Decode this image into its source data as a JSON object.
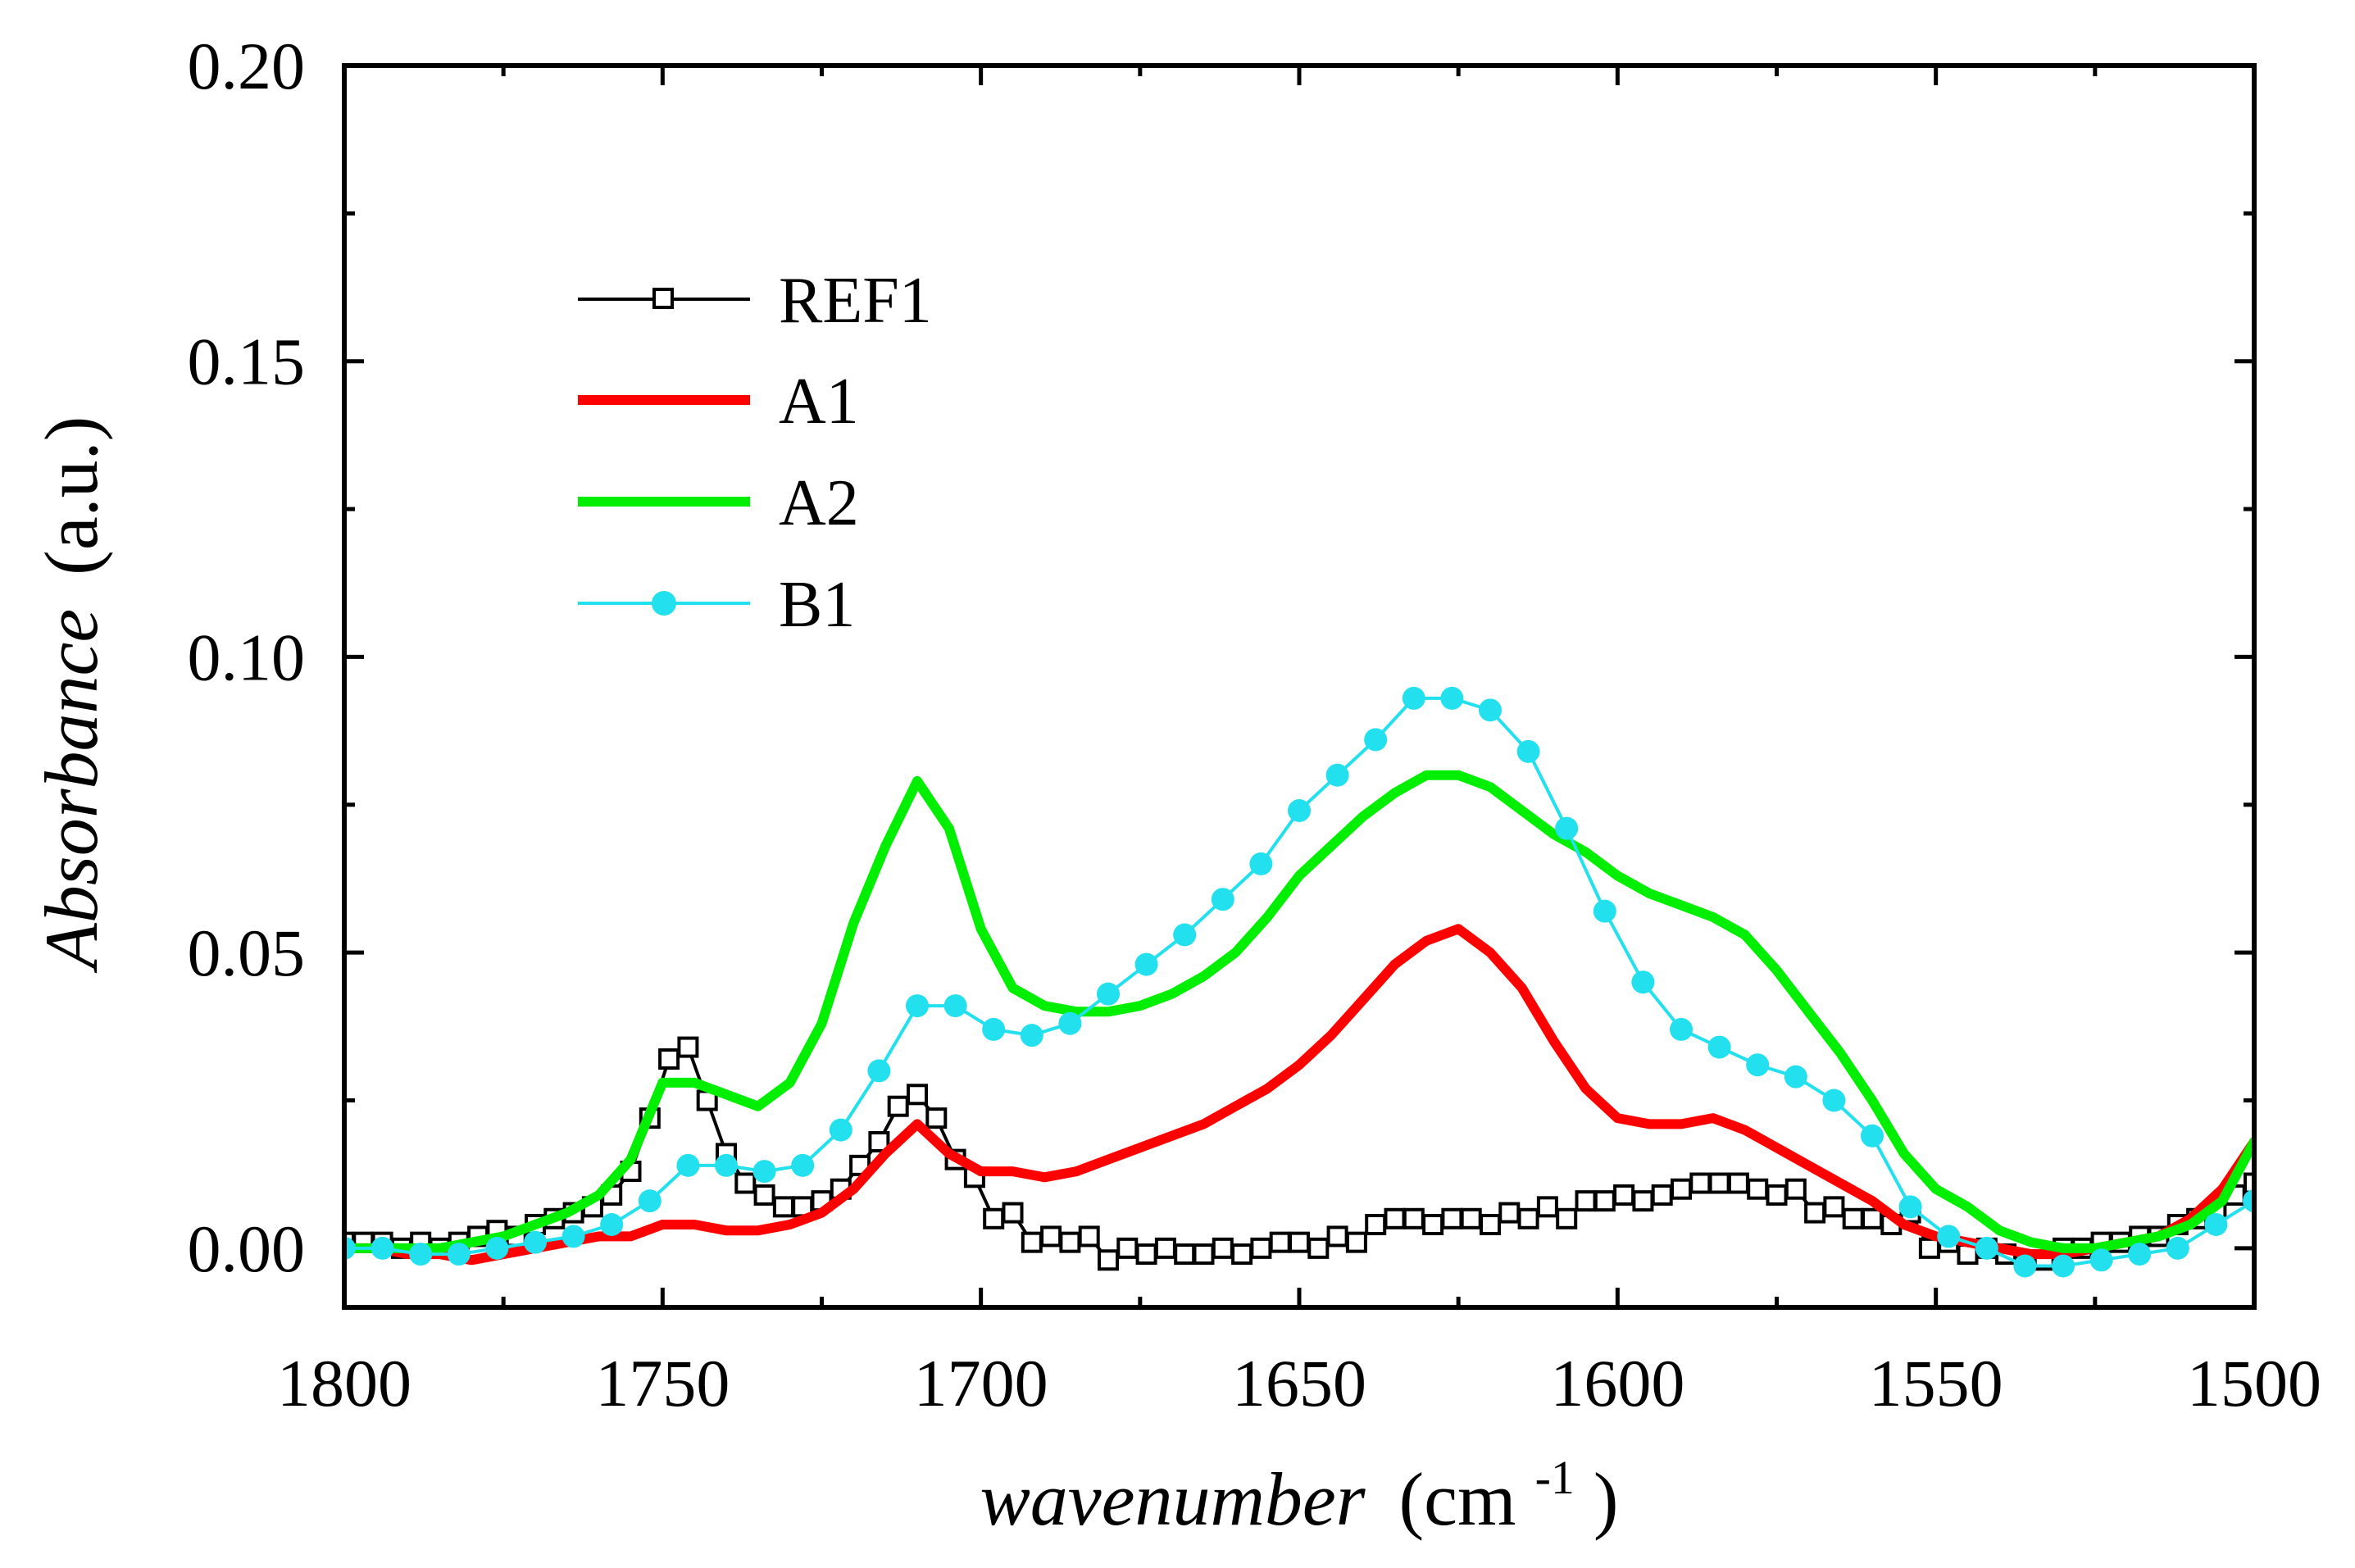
{
  "chart_data": {
    "type": "line",
    "title": "",
    "xlabel_italic": "wavenumber",
    "xlabel_unit_open": "(cm",
    "xlabel_unit_exp": "-1",
    "xlabel_unit_close": ")",
    "ylabel_italic": "Absorbance",
    "ylabel_unit": "(a.u.)",
    "xlim": [
      1800,
      1500
    ],
    "ylim": [
      -0.01,
      0.2
    ],
    "x_reversed": true,
    "xticks": [
      1800,
      1750,
      1700,
      1650,
      1600,
      1550,
      1500
    ],
    "xtick_labels": [
      "1800",
      "1750",
      "1700",
      "1650",
      "1600",
      "1550",
      "1500"
    ],
    "yticks": [
      0.0,
      0.05,
      0.1,
      0.15,
      0.2
    ],
    "ytick_labels": [
      "0.00",
      "0.05",
      "0.10",
      "0.15",
      "0.20"
    ],
    "legend_position": "upper-left",
    "series": [
      {
        "name": "REF1",
        "color": "#000000",
        "style": "line-open-square",
        "x": [
          1800,
          1797,
          1794,
          1791,
          1788,
          1785,
          1782,
          1779,
          1776,
          1773,
          1770,
          1767,
          1764,
          1761,
          1758,
          1755,
          1752,
          1749,
          1746,
          1743,
          1740,
          1737,
          1734,
          1731,
          1728,
          1725,
          1722,
          1719,
          1716,
          1713,
          1710,
          1707,
          1704,
          1701,
          1698,
          1695,
          1692,
          1689,
          1686,
          1683,
          1680,
          1677,
          1674,
          1671,
          1668,
          1665,
          1662,
          1659,
          1656,
          1653,
          1650,
          1647,
          1644,
          1641,
          1638,
          1635,
          1632,
          1629,
          1626,
          1623,
          1620,
          1617,
          1614,
          1611,
          1608,
          1605,
          1602,
          1599,
          1596,
          1593,
          1590,
          1587,
          1584,
          1581,
          1578,
          1575,
          1572,
          1569,
          1566,
          1563,
          1560,
          1557,
          1554,
          1551,
          1548,
          1545,
          1542,
          1539,
          1536,
          1533,
          1530,
          1527,
          1524,
          1521,
          1518,
          1515,
          1512,
          1509,
          1506,
          1503,
          1500
        ],
        "y": [
          0.001,
          0.001,
          0.001,
          0.0,
          0.001,
          0.0,
          0.001,
          0.002,
          0.003,
          0.002,
          0.004,
          0.005,
          0.006,
          0.007,
          0.009,
          0.013,
          0.022,
          0.032,
          0.034,
          0.025,
          0.016,
          0.011,
          0.009,
          0.007,
          0.007,
          0.008,
          0.01,
          0.014,
          0.018,
          0.024,
          0.026,
          0.022,
          0.015,
          0.012,
          0.005,
          0.006,
          0.001,
          0.002,
          0.001,
          0.002,
          -0.002,
          0.0,
          -0.001,
          0.0,
          -0.001,
          -0.001,
          0.0,
          -0.001,
          0.0,
          0.001,
          0.001,
          0.0,
          0.002,
          0.001,
          0.004,
          0.005,
          0.005,
          0.004,
          0.005,
          0.005,
          0.004,
          0.006,
          0.005,
          0.007,
          0.005,
          0.008,
          0.008,
          0.009,
          0.008,
          0.009,
          0.01,
          0.011,
          0.011,
          0.011,
          0.01,
          0.009,
          0.01,
          0.006,
          0.007,
          0.005,
          0.005,
          0.004,
          0.006,
          0.0,
          0.001,
          -0.001,
          0.0,
          -0.001,
          -0.002,
          -0.002,
          0.0,
          0.0,
          0.001,
          0.001,
          0.002,
          0.002,
          0.004,
          0.005,
          0.006,
          0.009,
          0.011
        ]
      },
      {
        "name": "A1",
        "color": "#ff0000",
        "style": "thick-line",
        "x": [
          1800,
          1795,
          1790,
          1785,
          1780,
          1775,
          1770,
          1765,
          1760,
          1755,
          1750,
          1745,
          1740,
          1735,
          1730,
          1725,
          1720,
          1715,
          1710,
          1705,
          1700,
          1695,
          1690,
          1685,
          1680,
          1675,
          1670,
          1665,
          1660,
          1655,
          1650,
          1645,
          1640,
          1635,
          1630,
          1625,
          1620,
          1615,
          1610,
          1605,
          1600,
          1595,
          1590,
          1585,
          1580,
          1575,
          1570,
          1565,
          1560,
          1555,
          1550,
          1545,
          1540,
          1535,
          1530,
          1525,
          1520,
          1515,
          1510,
          1505,
          1500
        ],
        "y": [
          0.0,
          0.0,
          -0.001,
          -0.001,
          -0.002,
          -0.001,
          0.0,
          0.001,
          0.002,
          0.002,
          0.004,
          0.004,
          0.003,
          0.003,
          0.004,
          0.006,
          0.01,
          0.016,
          0.021,
          0.016,
          0.013,
          0.013,
          0.012,
          0.013,
          0.015,
          0.017,
          0.019,
          0.021,
          0.024,
          0.027,
          0.031,
          0.036,
          0.042,
          0.048,
          0.052,
          0.054,
          0.05,
          0.044,
          0.035,
          0.027,
          0.022,
          0.021,
          0.021,
          0.022,
          0.02,
          0.017,
          0.014,
          0.011,
          0.008,
          0.004,
          0.002,
          0.001,
          0.0,
          -0.001,
          -0.001,
          0.0,
          0.001,
          0.002,
          0.005,
          0.01,
          0.018
        ]
      },
      {
        "name": "A2",
        "color": "#00ee00",
        "style": "thick-line",
        "x": [
          1800,
          1795,
          1790,
          1785,
          1780,
          1775,
          1770,
          1765,
          1760,
          1755,
          1750,
          1745,
          1740,
          1735,
          1730,
          1725,
          1720,
          1715,
          1710,
          1705,
          1700,
          1695,
          1690,
          1685,
          1680,
          1675,
          1670,
          1665,
          1660,
          1655,
          1650,
          1645,
          1640,
          1635,
          1630,
          1625,
          1620,
          1615,
          1610,
          1605,
          1600,
          1595,
          1590,
          1585,
          1580,
          1575,
          1570,
          1565,
          1560,
          1555,
          1550,
          1545,
          1540,
          1535,
          1530,
          1525,
          1520,
          1515,
          1510,
          1505,
          1500
        ],
        "y": [
          0.0,
          0.0,
          0.0,
          0.0,
          0.001,
          0.002,
          0.004,
          0.006,
          0.009,
          0.015,
          0.028,
          0.028,
          0.026,
          0.024,
          0.028,
          0.038,
          0.055,
          0.068,
          0.079,
          0.071,
          0.054,
          0.044,
          0.041,
          0.04,
          0.04,
          0.041,
          0.043,
          0.046,
          0.05,
          0.056,
          0.063,
          0.068,
          0.073,
          0.077,
          0.08,
          0.08,
          0.078,
          0.074,
          0.07,
          0.067,
          0.063,
          0.06,
          0.058,
          0.056,
          0.053,
          0.047,
          0.04,
          0.033,
          0.025,
          0.016,
          0.01,
          0.007,
          0.003,
          0.001,
          0.0,
          0.0,
          0.001,
          0.002,
          0.004,
          0.008,
          0.018
        ]
      },
      {
        "name": "B1",
        "color": "#22e0ee",
        "style": "line-filled-circle",
        "x": [
          1800,
          1794,
          1788,
          1782,
          1776,
          1770,
          1764,
          1758,
          1752,
          1746,
          1740,
          1734,
          1728,
          1722,
          1716,
          1710,
          1704,
          1698,
          1692,
          1686,
          1680,
          1674,
          1668,
          1662,
          1656,
          1650,
          1644,
          1638,
          1632,
          1626,
          1620,
          1614,
          1608,
          1602,
          1596,
          1590,
          1584,
          1578,
          1572,
          1566,
          1560,
          1554,
          1548,
          1542,
          1536,
          1530,
          1524,
          1518,
          1512,
          1506,
          1500
        ],
        "y": [
          0.0,
          0.0,
          -0.001,
          -0.001,
          0.0,
          0.001,
          0.002,
          0.004,
          0.008,
          0.014,
          0.014,
          0.013,
          0.014,
          0.02,
          0.03,
          0.041,
          0.041,
          0.037,
          0.036,
          0.038,
          0.043,
          0.048,
          0.053,
          0.059,
          0.065,
          0.074,
          0.08,
          0.086,
          0.093,
          0.093,
          0.091,
          0.084,
          0.071,
          0.057,
          0.045,
          0.037,
          0.034,
          0.031,
          0.029,
          0.025,
          0.019,
          0.007,
          0.002,
          0.0,
          -0.003,
          -0.003,
          -0.002,
          -0.001,
          0.0,
          0.004,
          0.008
        ]
      }
    ]
  }
}
